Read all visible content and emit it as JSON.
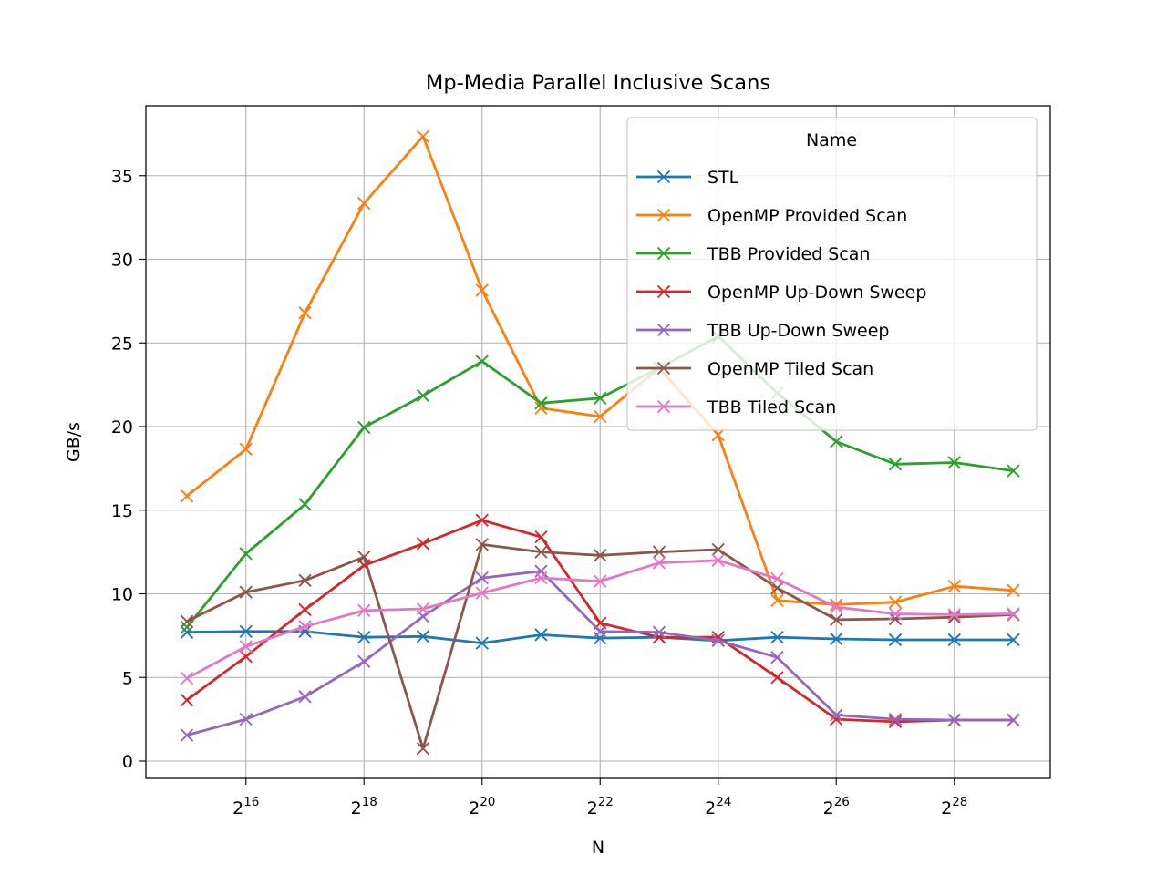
{
  "chart_data": {
    "type": "line",
    "title": "Mp-Media Parallel Inclusive Scans",
    "xlabel": "N",
    "ylabel": "GB/s",
    "x_scale": "log2",
    "x": [
      32768,
      65536,
      131072,
      262144,
      524288,
      1048576,
      2097152,
      4194304,
      8388608,
      16777216,
      33554432,
      67108864,
      134217728,
      268435456,
      536870912
    ],
    "xticks": [
      {
        "base": "2",
        "exp": "16",
        "value": 65536
      },
      {
        "base": "2",
        "exp": "18",
        "value": 262144
      },
      {
        "base": "2",
        "exp": "20",
        "value": 1048576
      },
      {
        "base": "2",
        "exp": "22",
        "value": 4194304
      },
      {
        "base": "2",
        "exp": "24",
        "value": 16777216
      },
      {
        "base": "2",
        "exp": "26",
        "value": 67108864
      },
      {
        "base": "2",
        "exp": "28",
        "value": 268435456
      }
    ],
    "yticks": [
      "0",
      "5",
      "10",
      "15",
      "20",
      "25",
      "30",
      "35"
    ],
    "ylim": [
      -1,
      39
    ],
    "grid": true,
    "marker": "x",
    "legend": {
      "title": "Name",
      "placement": "upper right"
    },
    "series": [
      {
        "name": "STL",
        "color": "#1f77b4",
        "values": [
          7.7,
          7.75,
          7.75,
          7.4,
          7.45,
          7.05,
          7.55,
          7.35,
          7.4,
          7.2,
          7.4,
          7.3,
          7.25,
          7.25,
          7.25
        ]
      },
      {
        "name": "OpenMP Provided Scan",
        "color": "#ff7f0e",
        "values": [
          15.85,
          18.65,
          26.8,
          33.35,
          37.35,
          28.15,
          21.1,
          20.6,
          23.5,
          19.5,
          9.6,
          9.35,
          9.5,
          10.45,
          10.2
        ]
      },
      {
        "name": "TBB Provided Scan",
        "color": "#2ca02c",
        "values": [
          8.0,
          12.4,
          15.35,
          19.95,
          21.85,
          23.9,
          21.4,
          21.7,
          23.5,
          25.4,
          22.0,
          19.1,
          17.75,
          17.85,
          17.35
        ]
      },
      {
        "name": "OpenMP Up-Down Sweep",
        "color": "#d62728",
        "values": [
          3.65,
          6.25,
          9.05,
          11.7,
          13.0,
          14.4,
          13.4,
          8.25,
          7.4,
          7.4,
          5.0,
          2.5,
          2.35,
          2.45,
          2.45
        ]
      },
      {
        "name": "TBB Up-Down Sweep",
        "color": "#9467bd",
        "values": [
          1.55,
          2.5,
          3.85,
          5.95,
          8.65,
          10.95,
          11.35,
          7.75,
          7.7,
          7.2,
          6.2,
          2.75,
          2.5,
          2.45,
          2.45
        ]
      },
      {
        "name": "OpenMP Tiled Scan",
        "color": "#8c564b",
        "values": [
          8.35,
          10.1,
          10.8,
          12.2,
          0.75,
          12.95,
          12.5,
          12.3,
          12.5,
          12.65,
          10.35,
          8.45,
          8.5,
          8.6,
          8.75
        ]
      },
      {
        "name": "TBB Tiled Scan",
        "color": "#e377c2",
        "values": [
          4.95,
          6.85,
          8.05,
          9.0,
          9.1,
          10.05,
          10.95,
          10.75,
          11.85,
          12.0,
          10.9,
          9.2,
          8.8,
          8.75,
          8.8
        ]
      }
    ]
  }
}
